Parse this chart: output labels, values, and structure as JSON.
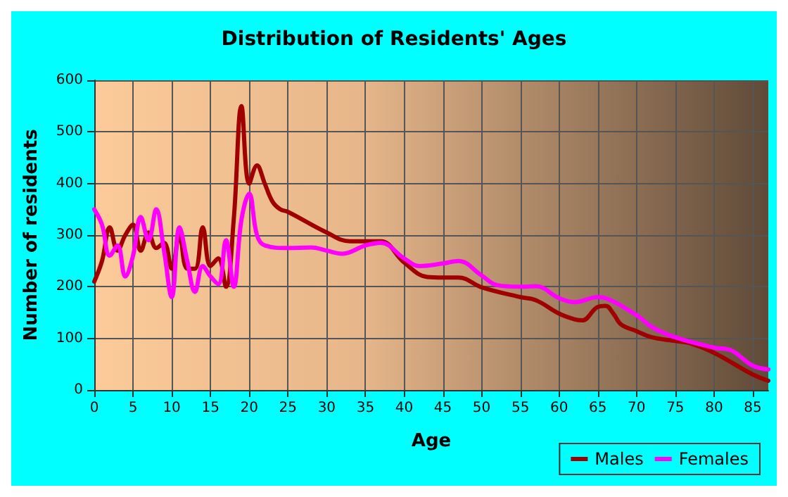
{
  "chart_data": {
    "type": "line",
    "title": "Distribution of Residents' Ages",
    "xlabel": "Age",
    "ylabel": "Number of residents",
    "xlim": [
      0,
      87
    ],
    "xticks": [
      0,
      5,
      10,
      15,
      20,
      25,
      30,
      35,
      40,
      45,
      50,
      55,
      60,
      65,
      70,
      75,
      80,
      85
    ],
    "ylim": [
      0,
      600
    ],
    "yticks": [
      0,
      100,
      200,
      300,
      400,
      500,
      600
    ],
    "grid": true,
    "legend": "bottom right",
    "marker": "none",
    "line_style": "solid",
    "series": [
      {
        "name": "Males",
        "color": "#a00000",
        "x": [
          0,
          1,
          2,
          3,
          4,
          5,
          6,
          7,
          8,
          9,
          10,
          11,
          12,
          13,
          14,
          15,
          16,
          17,
          18,
          19,
          20,
          21,
          22,
          23,
          24,
          25,
          30,
          33,
          35,
          37,
          40,
          43,
          45,
          47,
          50,
          55,
          57,
          60,
          62,
          63,
          65,
          66,
          67,
          68,
          70,
          72,
          75,
          77,
          80,
          85,
          87
        ],
        "values": [
          210,
          250,
          315,
          270,
          300,
          320,
          270,
          305,
          275,
          285,
          235,
          300,
          235,
          235,
          315,
          240,
          255,
          200,
          330,
          550,
          400,
          435,
          400,
          365,
          350,
          345,
          305,
          288,
          288,
          288,
          247,
          219,
          218,
          218,
          199,
          180,
          174,
          148,
          137,
          135,
          161,
          163,
          148,
          127,
          114,
          102,
          95,
          90,
          72,
          30,
          18
        ]
      },
      {
        "name": "Females",
        "color": "#ff00ff",
        "x": [
          0,
          1,
          2,
          3,
          4,
          5,
          6,
          7,
          8,
          9,
          10,
          11,
          12,
          13,
          14,
          15,
          16,
          17,
          18,
          19,
          20,
          21,
          22,
          25,
          28,
          30,
          32,
          35,
          37,
          40,
          42,
          45,
          47,
          50,
          52,
          55,
          57,
          60,
          62,
          65,
          66,
          70,
          72,
          75,
          80,
          82,
          85,
          87
        ],
        "values": [
          350,
          320,
          260,
          280,
          220,
          260,
          335,
          290,
          350,
          270,
          180,
          315,
          250,
          190,
          240,
          220,
          205,
          290,
          200,
          330,
          380,
          300,
          280,
          275,
          276,
          270,
          264,
          280,
          285,
          255,
          240,
          245,
          250,
          222,
          203,
          200,
          201,
          178,
          170,
          180,
          178,
          145,
          122,
          102,
          82,
          78,
          47,
          40
        ]
      }
    ]
  }
}
